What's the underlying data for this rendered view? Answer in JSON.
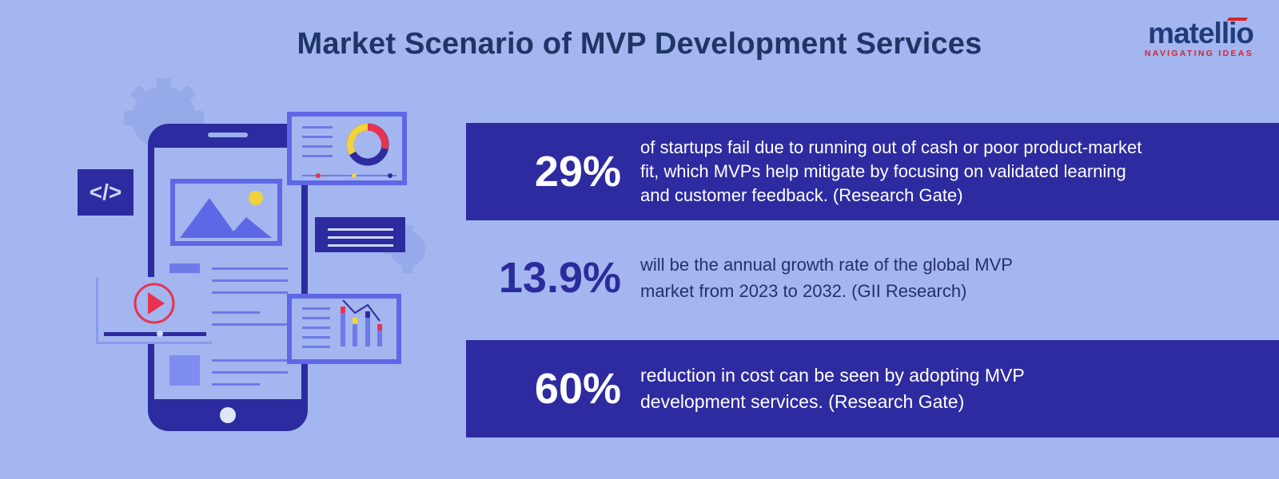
{
  "header": {
    "title": "Market Scenario of MVP Development Services"
  },
  "logo": {
    "word": "matellio",
    "tagline": "NAVIGATING IDEAS"
  },
  "stats": [
    {
      "value": "29%",
      "lines": [
        "of startups fail due to running out of cash or poor product-market",
        "fit, which MVPs help mitigate by focusing on validated learning",
        "and customer feedback. (Research Gate)"
      ]
    },
    {
      "value": "13.9%",
      "lines": [
        "will be the annual growth rate of the global MVP",
        "market from 2023 to 2032. (GII Research)"
      ]
    },
    {
      "value": "60%",
      "lines": [
        "reduction in cost can be seen by adopting MVP",
        "development services. (Research Gate)"
      ]
    }
  ],
  "illustration": {
    "code_icon": "</>",
    "icons": [
      "gear-icon",
      "code-icon",
      "image-icon",
      "sun-icon",
      "donut-chart-icon",
      "play-icon",
      "bar-chart-icon",
      "home-button-icon"
    ]
  },
  "colors": {
    "background": "#a3b6ef",
    "banner": "#2e2ba1",
    "title": "#1e3566",
    "accent_red": "#e8334f",
    "accent_yellow": "#f0d23c",
    "phone": "#2d2ba0"
  }
}
